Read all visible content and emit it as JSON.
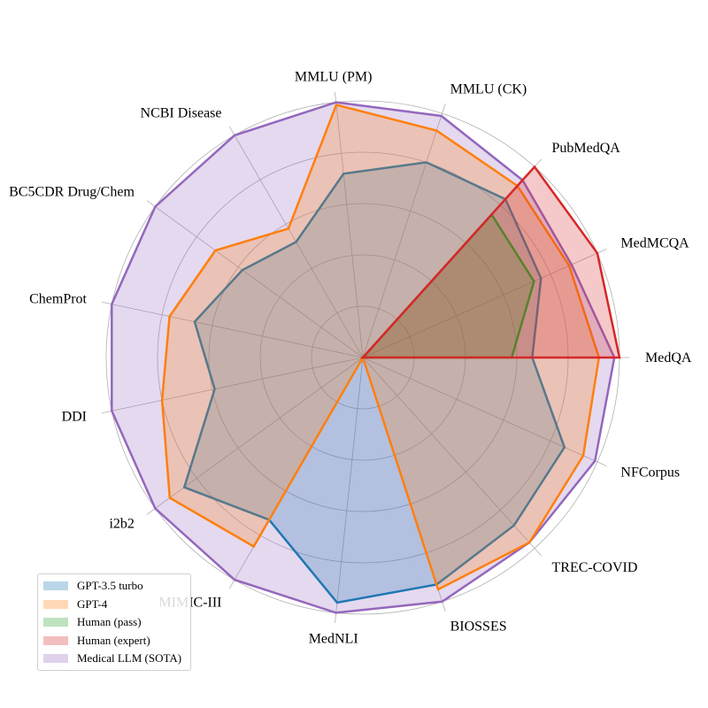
{
  "chart_data": {
    "type": "radar",
    "axes": [
      "MedQA",
      "MedMCQA",
      "PubMedQA",
      "MMLU (CK)",
      "MMLU (PM)",
      "NCBI Disease",
      "BC5CDR Drug/Chem",
      "ChemProt",
      "DDI",
      "i2b2",
      "MIMIC-III",
      "MedNLI",
      "BIOSSES",
      "TREC-COVID",
      "NFCorpus"
    ],
    "rlim": [
      0,
      1
    ],
    "grid": true,
    "grid_levels": [
      0.2,
      0.4,
      0.6,
      0.8,
      1.0
    ],
    "legend_position": "bottom-left",
    "series": [
      {
        "name": "GPT-3.5 turbo",
        "color": "#1f77b4",
        "values": [
          0.66,
          0.76,
          0.83,
          0.8,
          0.72,
          0.52,
          0.58,
          0.67,
          0.59,
          0.86,
          0.73,
          0.96,
          0.93,
          0.88,
          0.86
        ]
      },
      {
        "name": "GPT-4",
        "color": "#ff7f0e",
        "values": [
          0.92,
          0.88,
          0.9,
          0.93,
          0.99,
          0.58,
          0.71,
          0.77,
          0.8,
          0.93,
          0.85,
          0.0,
          0.95,
          0.97,
          0.94
        ]
      },
      {
        "name": "Human (pass)",
        "color": "#2ca02c",
        "values": [
          0.58,
          0.73,
          0.75,
          0.0,
          0.0,
          0.0,
          0.0,
          0.0,
          0.0,
          0.0,
          0.0,
          0.0,
          0.0,
          0.0,
          0.0
        ]
      },
      {
        "name": "Human (expert)",
        "color": "#d62728",
        "values": [
          1.0,
          1.0,
          1.0,
          0.0,
          0.0,
          0.0,
          0.0,
          0.0,
          0.0,
          0.0,
          0.0,
          0.0,
          0.0,
          0.0,
          0.0
        ]
      },
      {
        "name": "Medical LLM (SOTA)",
        "color": "#9467bd",
        "values": [
          0.98,
          0.89,
          0.93,
          0.99,
          1.0,
          1.0,
          1.0,
          1.0,
          1.0,
          1.0,
          1.0,
          1.0,
          1.0,
          0.97,
          0.99
        ]
      }
    ],
    "draw_order": [
      4,
      0,
      1,
      2,
      3
    ]
  }
}
